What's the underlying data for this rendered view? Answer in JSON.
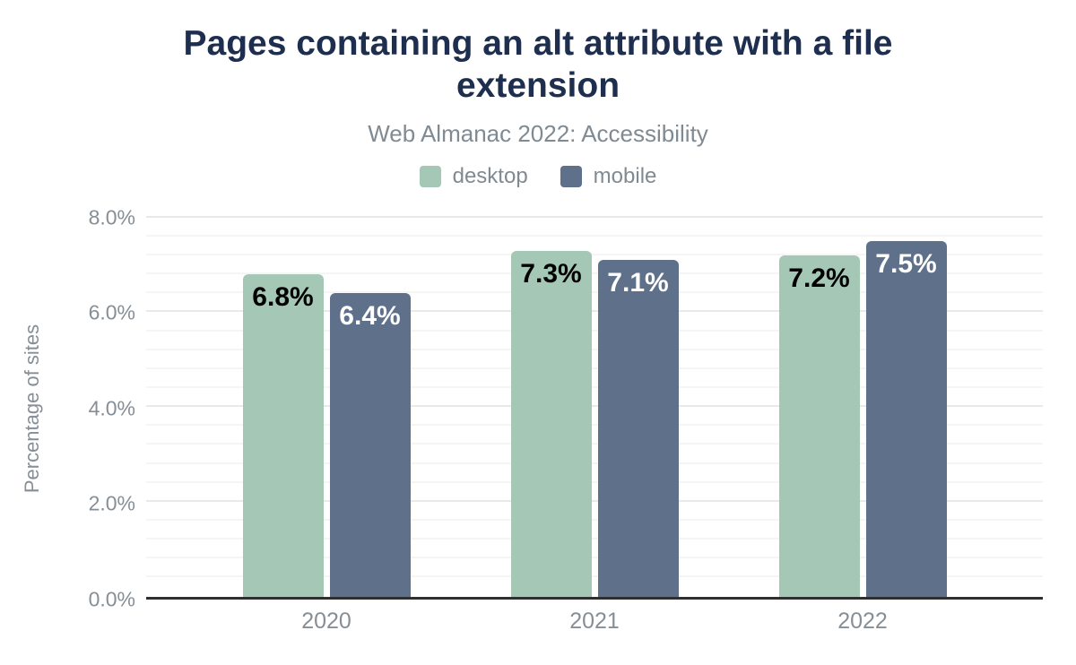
{
  "title": "Pages containing an alt attribute with a file extension",
  "subtitle": "Web Almanac 2022: Accessibility",
  "legend": {
    "items": [
      {
        "label": "desktop",
        "color": "#a4c8b5"
      },
      {
        "label": "mobile",
        "color": "#5f708a"
      }
    ]
  },
  "chart_data": {
    "type": "bar",
    "categories": [
      "2020",
      "2021",
      "2022"
    ],
    "series": [
      {
        "name": "desktop",
        "color": "#a4c8b5",
        "label_color": "#000000",
        "values": [
          6.8,
          7.3,
          7.2
        ],
        "labels": [
          "6.8%",
          "7.3%",
          "7.2%"
        ]
      },
      {
        "name": "mobile",
        "color": "#5f708a",
        "label_color": "#ffffff",
        "values": [
          6.4,
          7.1,
          7.5
        ],
        "labels": [
          "6.4%",
          "7.1%",
          "7.5%"
        ]
      }
    ],
    "xlabel": "",
    "ylabel": "Percentage of sites",
    "ylim": [
      0,
      8
    ],
    "ytick_values": [
      0,
      2,
      4,
      6,
      8
    ],
    "yticks": [
      "0.0%",
      "2.0%",
      "4.0%",
      "6.0%",
      "8.0%"
    ],
    "minor_grid_step": 0.4,
    "grid": true,
    "legend_position": "top",
    "value_labels_position": "inside-top"
  },
  "colors": {
    "title": "#1d2e4e",
    "subtitle_text": "#7f8a93",
    "axis_text": "#868e96",
    "axis_line": "#2f2f2f",
    "grid_minor": "#f5f5f5",
    "grid_major": "#e9e9e9",
    "background": "#ffffff"
  }
}
